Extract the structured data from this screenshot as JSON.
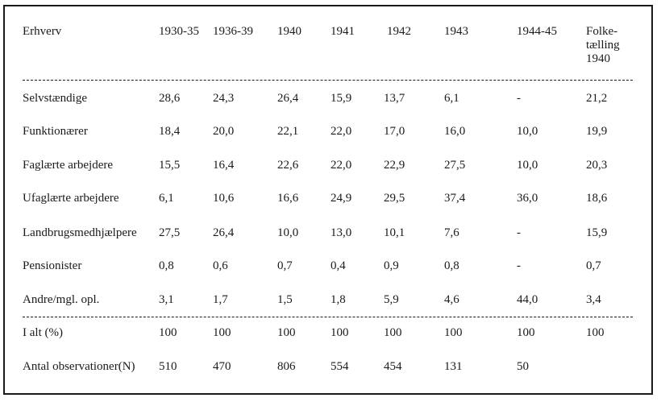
{
  "table": {
    "header": {
      "first": "Erhverv",
      "columns": [
        "1930-35",
        "1936-39",
        "1940",
        "1941",
        "1942",
        "1943",
        "1944-45"
      ],
      "last": [
        "Folke-",
        "tælling",
        "1940"
      ]
    },
    "rows": [
      {
        "label": "Selvstændige",
        "values": [
          "28,6",
          "24,3",
          "26,4",
          "15,9",
          "13,7",
          "6,1",
          "-",
          "21,2"
        ]
      },
      {
        "label": "Funktionærer",
        "values": [
          "18,4",
          "20,0",
          "22,1",
          "22,0",
          "17,0",
          "16,0",
          "10,0",
          "19,9"
        ]
      },
      {
        "label": "Faglærte arbejdere",
        "values": [
          "15,5",
          "16,4",
          "22,6",
          "22,0",
          "22,9",
          "27,5",
          "10,0",
          "20,3"
        ]
      },
      {
        "label": "Ufaglærte arbejdere",
        "values": [
          "6,1",
          "10,6",
          "16,6",
          "24,9",
          "29,5",
          "37,4",
          "36,0",
          "18,6"
        ]
      },
      {
        "label": "Landbrugsmedhjælpere",
        "values": [
          "27,5",
          "26,4",
          "10,0",
          "13,0",
          "10,1",
          "7,6",
          "-",
          "15,9"
        ]
      },
      {
        "label": "Pensionister",
        "values": [
          "0,8",
          "0,6",
          "0,7",
          "0,4",
          "0,9",
          "0,8",
          "-",
          "0,7"
        ]
      },
      {
        "label": "Andre/mgl. opl.",
        "values": [
          "3,1",
          "1,7",
          "1,5",
          "1,8",
          "5,9",
          "4,6",
          "44,0",
          "3,4"
        ]
      }
    ],
    "totals": [
      {
        "label": "I alt  (%)",
        "values": [
          "100",
          "100",
          "100",
          "100",
          "100",
          "100",
          "100",
          "100"
        ]
      },
      {
        "label": "Antal observationer(N)",
        "values": [
          "510",
          "470",
          "806",
          "554",
          "454",
          "131",
          "50",
          ""
        ]
      }
    ]
  }
}
